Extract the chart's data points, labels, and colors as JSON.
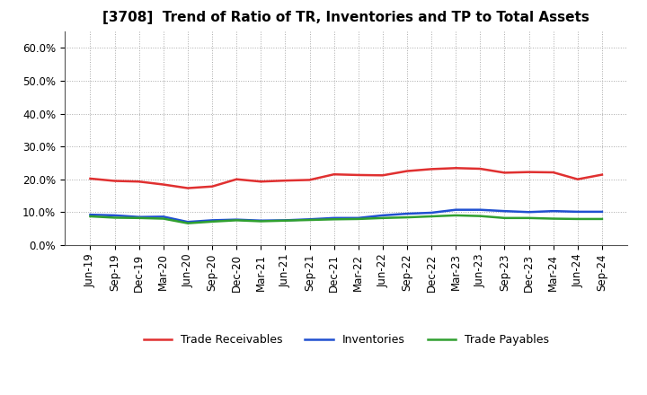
{
  "title": "[3708]  Trend of Ratio of TR, Inventories and TP to Total Assets",
  "x_labels": [
    "Jun-19",
    "Sep-19",
    "Dec-19",
    "Mar-20",
    "Jun-20",
    "Sep-20",
    "Dec-20",
    "Mar-21",
    "Jun-21",
    "Sep-21",
    "Dec-21",
    "Mar-22",
    "Jun-22",
    "Sep-22",
    "Dec-22",
    "Mar-23",
    "Jun-23",
    "Sep-23",
    "Dec-23",
    "Mar-24",
    "Jun-24",
    "Sep-24"
  ],
  "trade_receivables": [
    0.202,
    0.195,
    0.193,
    0.184,
    0.173,
    0.178,
    0.2,
    0.193,
    0.196,
    0.198,
    0.215,
    0.213,
    0.212,
    0.225,
    0.231,
    0.234,
    0.232,
    0.22,
    0.222,
    0.221,
    0.2,
    0.214
  ],
  "inventories": [
    0.092,
    0.09,
    0.085,
    0.086,
    0.07,
    0.075,
    0.077,
    0.074,
    0.075,
    0.078,
    0.082,
    0.082,
    0.09,
    0.095,
    0.098,
    0.107,
    0.107,
    0.103,
    0.1,
    0.103,
    0.101,
    0.101
  ],
  "trade_payables": [
    0.087,
    0.083,
    0.082,
    0.08,
    0.066,
    0.071,
    0.075,
    0.072,
    0.074,
    0.076,
    0.078,
    0.079,
    0.082,
    0.084,
    0.087,
    0.09,
    0.088,
    0.082,
    0.082,
    0.08,
    0.079,
    0.079
  ],
  "color_tr": "#e03030",
  "color_inv": "#2050d0",
  "color_tp": "#30a030",
  "ylim": [
    0.0,
    0.65
  ],
  "yticks": [
    0.0,
    0.1,
    0.2,
    0.3,
    0.4,
    0.5,
    0.6
  ],
  "legend_labels": [
    "Trade Receivables",
    "Inventories",
    "Trade Payables"
  ],
  "background_color": "#ffffff",
  "grid_color": "#aaaaaa",
  "title_fontsize": 11,
  "tick_fontsize": 8.5,
  "legend_fontsize": 9
}
